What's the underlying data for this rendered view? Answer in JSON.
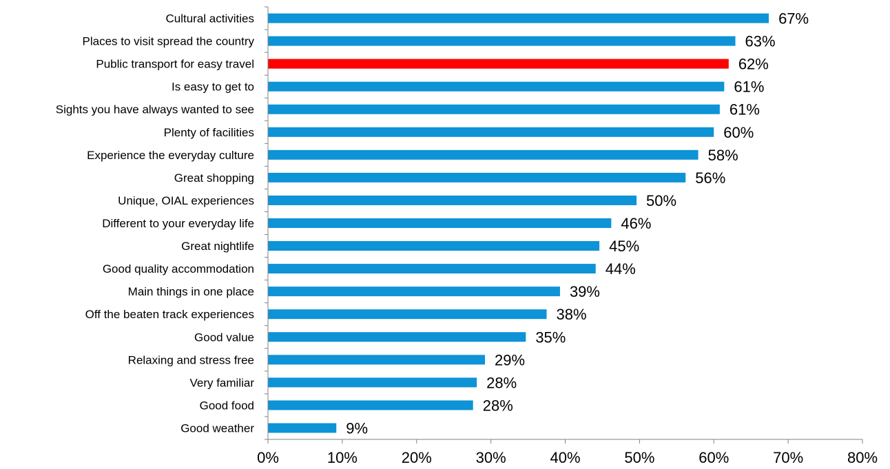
{
  "chart_data": {
    "type": "bar",
    "orientation": "horizontal",
    "categories": [
      "Cultural activities",
      "Places to visit spread the country",
      "Public transport for easy travel",
      "Is easy to get to",
      "Sights you have always wanted to see",
      "Plenty of facilities",
      "Experience the everyday culture",
      "Great shopping",
      "Unique, OIAL experiences",
      "Different to your everyday life",
      "Great nightlife",
      "Good quality accommodation",
      "Main things in one place",
      "Off the beaten track experiences",
      "Good value",
      "Relaxing and stress free",
      "Very familiar",
      "Good food",
      "Good weather"
    ],
    "values": [
      67.4,
      62.9,
      62.0,
      61.4,
      60.8,
      60.0,
      57.9,
      56.2,
      49.6,
      46.2,
      44.6,
      44.1,
      39.3,
      37.5,
      34.7,
      29.2,
      28.1,
      27.6,
      9.2
    ],
    "value_labels": [
      "67%",
      "63%",
      "62%",
      "61%",
      "61%",
      "60%",
      "58%",
      "56%",
      "50%",
      "46%",
      "45%",
      "44%",
      "39%",
      "38%",
      "35%",
      "29%",
      "28%",
      "28%",
      "9%"
    ],
    "highlight_index": 2,
    "colors": {
      "bar": "#0e93d6",
      "highlight": "#ff0000",
      "axis": "#808080"
    },
    "xlim": [
      0,
      80
    ],
    "xticks": [
      "0%",
      "10%",
      "20%",
      "30%",
      "40%",
      "50%",
      "60%",
      "70%",
      "80%"
    ],
    "grid": false,
    "legend": "none"
  }
}
